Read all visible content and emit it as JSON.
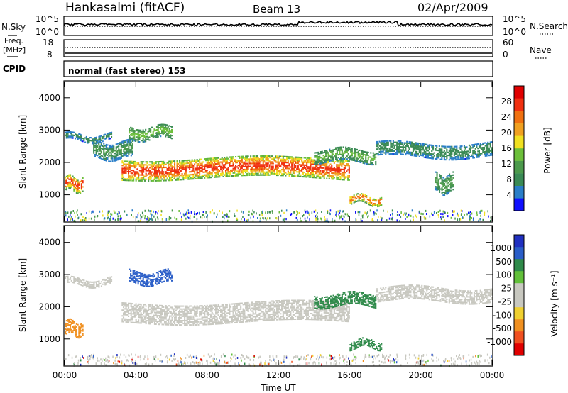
{
  "header": {
    "station": "Hankasalmi (fitACF)",
    "beam": "Beam 13",
    "date": "02/Apr/2009"
  },
  "sky_panel": {
    "left_label": "N.Sky",
    "left_ticks": [
      "10^5",
      "10^0"
    ],
    "right_ticks": [
      "10^5",
      "10^0"
    ],
    "right_label": "N.Search"
  },
  "freq_panel": {
    "left_label_1": "Freq.",
    "left_label_2": "[MHz]",
    "left_ticks": [
      "18",
      "8"
    ],
    "right_ticks": [
      "60",
      "0"
    ],
    "right_label": "Nave"
  },
  "cpid": {
    "label": "CPID",
    "mode": "normal (fast stereo) 153"
  },
  "colors": {
    "power": [
      "#1010ff",
      "#2a7ec8",
      "#3a8a55",
      "#4c9a4c",
      "#6cbf3a",
      "#f0e020",
      "#f0a020",
      "#f07010",
      "#f03010",
      "#e00000"
    ],
    "velocity": [
      "#2030c0",
      "#2a5ec8",
      "#2f8a4a",
      "#62c03a",
      "#c8c8c0",
      "#c8c8c0",
      "#f0d030",
      "#f09020",
      "#f05020",
      "#e00000"
    ],
    "ground_scatter": "#c8c8c0"
  },
  "chart_data": [
    {
      "type": "heatmap",
      "name": "power",
      "ylabel": "Slant Range [km]",
      "yticks": [
        "4000",
        "3000",
        "2000",
        "1000"
      ],
      "ylim": [
        180,
        4500
      ],
      "xlim": [
        0,
        24
      ],
      "colorbar_label": "Power [dB]",
      "colorbar_ticks": [
        "28",
        "24",
        "20",
        "16",
        "12",
        "8",
        "4"
      ],
      "colorbar_range": [
        0,
        32
      ],
      "features": [
        {
          "t": [
            0.0,
            1.0
          ],
          "r": [
            1100,
            1550
          ],
          "level": 26
        },
        {
          "t": [
            0.0,
            2.6
          ],
          "r": [
            2650,
            2850
          ],
          "level": 8
        },
        {
          "t": [
            1.6,
            3.8
          ],
          "r": [
            2100,
            2600
          ],
          "level": 10
        },
        {
          "t": [
            3.6,
            6.0
          ],
          "r": [
            2700,
            3100
          ],
          "level": 14
        },
        {
          "t": [
            3.2,
            16.0
          ],
          "r": [
            1500,
            2100
          ],
          "level": 27
        },
        {
          "t": [
            14.0,
            17.5
          ],
          "r": [
            2000,
            2400
          ],
          "level": 13
        },
        {
          "t": [
            16.0,
            17.8
          ],
          "r": [
            700,
            950
          ],
          "level": 25
        },
        {
          "t": [
            17.5,
            24.0
          ],
          "r": [
            2150,
            2600
          ],
          "level": 9
        },
        {
          "t": [
            20.8,
            21.8
          ],
          "r": [
            1050,
            1600
          ],
          "level": 12
        }
      ]
    },
    {
      "type": "heatmap",
      "name": "velocity",
      "ylabel": "Slant Range [km]",
      "yticks": [
        "4000",
        "3000",
        "2000",
        "1000"
      ],
      "ylim": [
        180,
        4500
      ],
      "xlim": [
        0,
        24
      ],
      "xticks": [
        "00:00",
        "04:00",
        "08:00",
        "12:00",
        "16:00",
        "20:00",
        "00:00"
      ],
      "xlabel": "Time UT",
      "colorbar_label": "Velocity [m s⁻¹]",
      "colorbar_ticks": [
        "1000",
        "500",
        "100",
        "25",
        "-25",
        "-100",
        "-500",
        "-1000"
      ],
      "features": [
        {
          "t": [
            0.0,
            1.0
          ],
          "r": [
            1100,
            1550
          ],
          "velocity": -200
        },
        {
          "t": [
            0.0,
            2.6
          ],
          "r": [
            2650,
            2850
          ],
          "velocity": 0
        },
        {
          "t": [
            3.6,
            6.0
          ],
          "r": [
            2700,
            3100
          ],
          "velocity": 600
        },
        {
          "t": [
            3.2,
            16.0
          ],
          "r": [
            1500,
            2100
          ],
          "velocity": 0
        },
        {
          "t": [
            14.0,
            17.5
          ],
          "r": [
            2000,
            2400
          ],
          "velocity": 80
        },
        {
          "t": [
            16.0,
            17.8
          ],
          "r": [
            700,
            950
          ],
          "velocity": 80
        },
        {
          "t": [
            17.5,
            24.0
          ],
          "r": [
            2150,
            2600
          ],
          "velocity": 0
        }
      ]
    }
  ]
}
